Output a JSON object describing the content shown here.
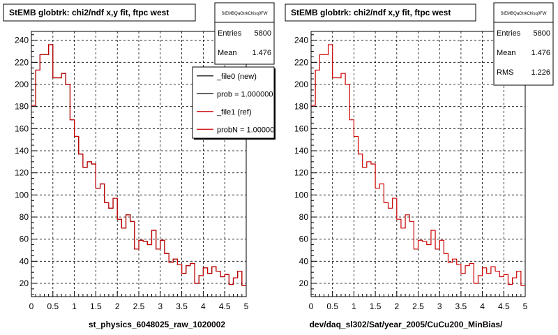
{
  "colors": {
    "ref_line": "#cc0000",
    "new_line": "#000000",
    "grid": "#000000",
    "background": "#ffffff"
  },
  "panels": [
    {
      "title": "StEMB globtrk: chi2/ndf x,y fit, ftpc west",
      "footer": "st_physics_6048025_raw_1020002",
      "stats": {
        "name": "StEMBQaGtrkChisq0FW",
        "rows": [
          {
            "label": "Entries",
            "value": "5800"
          },
          {
            "label": "Mean",
            "value": "1.476"
          }
        ]
      },
      "legend": [
        {
          "label": "_file0 (new)",
          "color": "#000000"
        },
        {
          "label": "prob = 1.000000",
          "color": "#000000"
        },
        {
          "label": "_file1 (ref)",
          "color": "#cc0000"
        },
        {
          "label": "probN = 1.000000",
          "color": "#cc0000"
        }
      ]
    },
    {
      "title": "StEMB globtrk: chi2/ndf x,y fit, ftpc west",
      "footer": "dev/daq_sl302/Sat/year_2005/CuCu200_MinBias/",
      "stats": {
        "name": "StEMBQaGtrkChisq0FW",
        "rows": [
          {
            "label": "Entries",
            "value": "5800"
          },
          {
            "label": "Mean",
            "value": "1.476"
          },
          {
            "label": "RMS",
            "value": "1.226"
          }
        ]
      },
      "legend": []
    }
  ],
  "chart_data": [
    {
      "type": "histogram",
      "title": "StEMB globtrk: chi2/ndf x,y fit, ftpc west",
      "xlabel": "",
      "ylabel": "",
      "xlim": [
        0,
        5
      ],
      "ylim": [
        8,
        248
      ],
      "grid": true,
      "legend_position": "top-right",
      "x_ticks": [
        "0",
        "0.5",
        "1",
        "1.5",
        "2",
        "2.5",
        "3",
        "3.5",
        "4",
        "4.5",
        "5"
      ],
      "y_ticks": [
        "20",
        "40",
        "60",
        "80",
        "100",
        "120",
        "140",
        "160",
        "180",
        "200",
        "220",
        "240"
      ],
      "bin_edges": [
        0,
        0.1,
        0.2,
        0.3,
        0.4,
        0.5,
        0.6,
        0.7,
        0.8,
        0.9,
        1.0,
        1.1,
        1.2,
        1.3,
        1.4,
        1.5,
        1.6,
        1.7,
        1.8,
        1.9,
        2.0,
        2.1,
        2.2,
        2.3,
        2.4,
        2.5,
        2.6,
        2.7,
        2.8,
        2.9,
        3.0,
        3.1,
        3.2,
        3.3,
        3.4,
        3.5,
        3.6,
        3.7,
        3.8,
        3.9,
        4.0,
        4.1,
        4.2,
        4.3,
        4.4,
        4.5,
        4.6,
        4.7,
        4.8,
        4.9,
        5.0
      ],
      "series": [
        {
          "name": "_file0 (new)",
          "values": [
            181,
            213,
            227,
            227,
            236,
            206,
            206,
            210,
            200,
            168,
            153,
            137,
            125,
            130,
            128,
            106,
            110,
            93,
            88,
            97,
            78,
            70,
            82,
            76,
            51,
            59,
            58,
            55,
            68,
            51,
            59,
            47,
            39,
            42,
            37,
            29,
            36,
            38,
            20,
            27,
            34,
            29,
            35,
            31,
            26,
            28,
            19,
            25,
            31,
            18
          ]
        },
        {
          "name": "_file1 (ref)",
          "values": [
            181,
            213,
            227,
            227,
            236,
            206,
            206,
            210,
            200,
            168,
            153,
            137,
            125,
            130,
            128,
            106,
            110,
            93,
            88,
            97,
            78,
            70,
            82,
            76,
            51,
            59,
            58,
            55,
            68,
            51,
            59,
            47,
            39,
            42,
            37,
            29,
            36,
            38,
            20,
            27,
            34,
            29,
            35,
            31,
            26,
            28,
            19,
            25,
            31,
            18
          ]
        }
      ]
    },
    {
      "type": "histogram",
      "title": "StEMB globtrk: chi2/ndf x,y fit, ftpc west",
      "xlabel": "",
      "ylabel": "",
      "xlim": [
        0,
        5
      ],
      "ylim": [
        8,
        248
      ],
      "grid": true,
      "x_ticks": [
        "0",
        "0.5",
        "1",
        "1.5",
        "2",
        "2.5",
        "3",
        "3.5",
        "4",
        "4.5",
        "5"
      ],
      "y_ticks": [
        "20",
        "40",
        "60",
        "80",
        "100",
        "120",
        "140",
        "160",
        "180",
        "200",
        "220",
        "240"
      ],
      "bin_edges": [
        0,
        0.1,
        0.2,
        0.3,
        0.4,
        0.5,
        0.6,
        0.7,
        0.8,
        0.9,
        1.0,
        1.1,
        1.2,
        1.3,
        1.4,
        1.5,
        1.6,
        1.7,
        1.8,
        1.9,
        2.0,
        2.1,
        2.2,
        2.3,
        2.4,
        2.5,
        2.6,
        2.7,
        2.8,
        2.9,
        3.0,
        3.1,
        3.2,
        3.3,
        3.4,
        3.5,
        3.6,
        3.7,
        3.8,
        3.9,
        4.0,
        4.1,
        4.2,
        4.3,
        4.4,
        4.5,
        4.6,
        4.7,
        4.8,
        4.9,
        5.0
      ],
      "series": [
        {
          "name": "",
          "values": [
            181,
            213,
            227,
            227,
            236,
            206,
            206,
            210,
            200,
            168,
            153,
            137,
            125,
            130,
            128,
            106,
            110,
            93,
            88,
            97,
            78,
            70,
            82,
            76,
            51,
            59,
            58,
            55,
            68,
            51,
            59,
            47,
            39,
            42,
            37,
            29,
            36,
            38,
            20,
            27,
            34,
            29,
            35,
            31,
            26,
            28,
            19,
            25,
            31,
            18
          ]
        }
      ]
    }
  ]
}
